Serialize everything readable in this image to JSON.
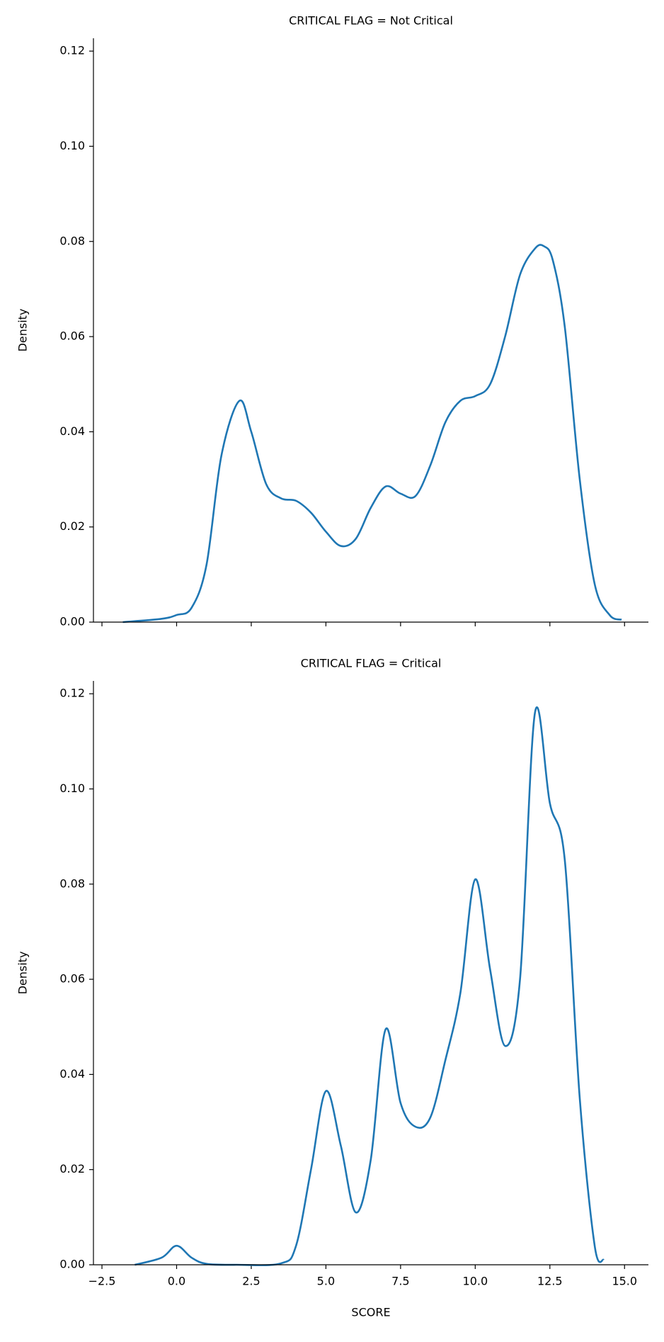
{
  "chart_data": [
    {
      "type": "line",
      "title": "CRITICAL FLAG = Not Critical",
      "y_label": "Density",
      "x": [
        -1.8,
        -0.5,
        0,
        0.5,
        1.0,
        1.5,
        2.1,
        2.5,
        3.0,
        3.5,
        4.0,
        4.5,
        5.0,
        5.5,
        6.0,
        6.5,
        7.0,
        7.5,
        8.0,
        8.5,
        9.0,
        9.5,
        10.0,
        10.5,
        11.0,
        11.5,
        12.0,
        12.3,
        12.6,
        13.0,
        13.5,
        14.0,
        14.5,
        14.9
      ],
      "series": [
        {
          "name": "Not Critical",
          "color": "#1f77b4",
          "values": [
            0,
            0.0007,
            0.0015,
            0.003,
            0.012,
            0.035,
            0.0465,
            0.04,
            0.029,
            0.026,
            0.0255,
            0.023,
            0.019,
            0.016,
            0.0175,
            0.024,
            0.0285,
            0.027,
            0.0265,
            0.033,
            0.042,
            0.0465,
            0.0475,
            0.05,
            0.06,
            0.073,
            0.0785,
            0.079,
            0.076,
            0.062,
            0.03,
            0.008,
            0.0015,
            0.0005
          ]
        }
      ],
      "xlim": [
        -2.785,
        15.8
      ],
      "ylim": [
        0,
        0.1227
      ],
      "xticks": [
        -2.5,
        0,
        2.5,
        5,
        7.5,
        10,
        12.5,
        15
      ],
      "yticks": [
        {
          "value": 0,
          "label": "0.00"
        },
        {
          "value": 0.02,
          "label": "0.02"
        },
        {
          "value": 0.04,
          "label": "0.04"
        },
        {
          "value": 0.06,
          "label": "0.06"
        },
        {
          "value": 0.08,
          "label": "0.08"
        },
        {
          "value": 0.1,
          "label": "0.10"
        },
        {
          "value": 0.12,
          "label": "0.12"
        }
      ]
    },
    {
      "type": "line",
      "title": "CRITICAL FLAG = Critical",
      "x_label": "SCORE",
      "y_label": "Density",
      "x": [
        -1.4,
        -0.5,
        0,
        0.5,
        1.0,
        2.0,
        3.5,
        4.0,
        4.5,
        5.0,
        5.5,
        6.0,
        6.5,
        7.0,
        7.5,
        8.0,
        8.5,
        9.0,
        9.5,
        10.0,
        10.5,
        11.0,
        11.5,
        12.0,
        12.5,
        13.0,
        13.5,
        14.0,
        14.3
      ],
      "series": [
        {
          "name": "Critical",
          "color": "#1f77b4",
          "values": [
            0,
            0.0015,
            0.004,
            0.0015,
            0.0002,
            0,
            0.0003,
            0.004,
            0.02,
            0.0365,
            0.025,
            0.011,
            0.022,
            0.0495,
            0.034,
            0.029,
            0.031,
            0.043,
            0.057,
            0.081,
            0.062,
            0.046,
            0.06,
            0.116,
            0.097,
            0.085,
            0.035,
            0.004,
            0.001
          ]
        }
      ],
      "xlim": [
        -2.785,
        15.8
      ],
      "ylim": [
        0,
        0.1227
      ],
      "xticks": [
        {
          "value": -2.5,
          "label": "−2.5"
        },
        {
          "value": 0,
          "label": "0.0"
        },
        {
          "value": 2.5,
          "label": "2.5"
        },
        {
          "value": 5,
          "label": "5.0"
        },
        {
          "value": 7.5,
          "label": "7.5"
        },
        {
          "value": 10,
          "label": "10.0"
        },
        {
          "value": 12.5,
          "label": "12.5"
        },
        {
          "value": 15,
          "label": "15.0"
        }
      ],
      "yticks": [
        {
          "value": 0,
          "label": "0.00"
        },
        {
          "value": 0.02,
          "label": "0.02"
        },
        {
          "value": 0.04,
          "label": "0.04"
        },
        {
          "value": 0.06,
          "label": "0.06"
        },
        {
          "value": 0.08,
          "label": "0.08"
        },
        {
          "value": 0.1,
          "label": "0.10"
        },
        {
          "value": 0.12,
          "label": "0.12"
        }
      ]
    }
  ]
}
